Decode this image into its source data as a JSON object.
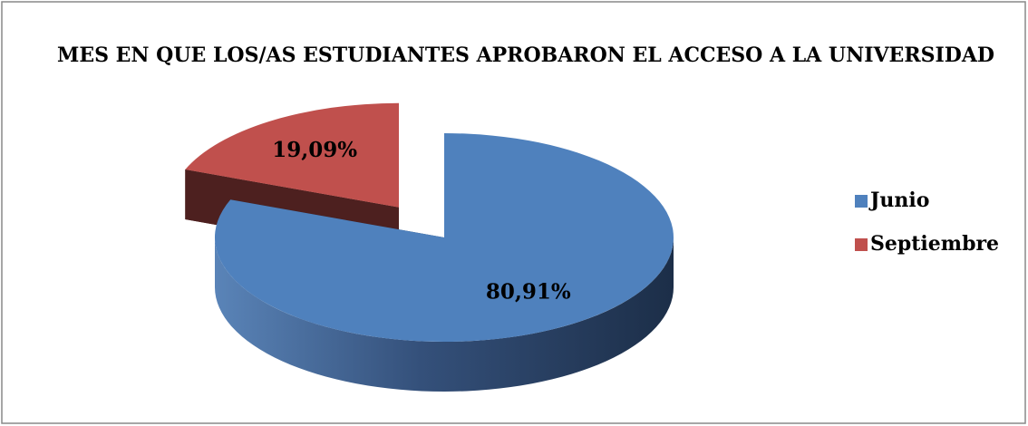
{
  "chart_data": {
    "type": "pie",
    "title": "MES EN QUE LOS/AS ESTUDIANTES APROBARON EL ACCESO A LA UNIVERSIDAD",
    "categories": [
      "Junio",
      "Septiembre"
    ],
    "values": [
      80.91,
      19.09
    ],
    "value_labels": [
      "80,91%",
      "19,09%"
    ],
    "colors": [
      "#4f81bd",
      "#c0504d"
    ],
    "legend": "right"
  }
}
